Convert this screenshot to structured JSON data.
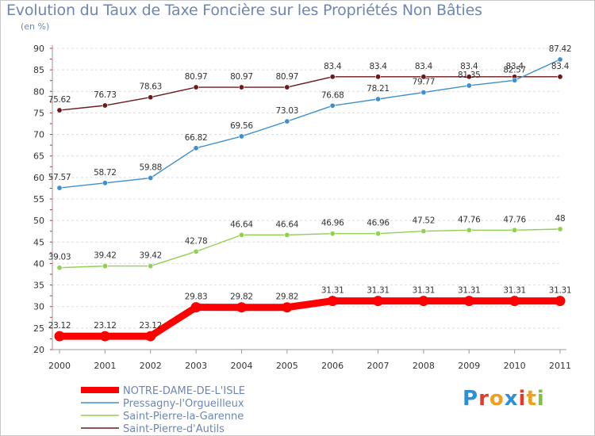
{
  "chart_data": {
    "type": "line",
    "title": "Evolution du Taux de Taxe Foncière sur les Propriétés Non Bâties",
    "unit_label": "(en %)",
    "xlabel": "",
    "ylabel": "",
    "x": [
      "2000",
      "2001",
      "2002",
      "2003",
      "2004",
      "2005",
      "2006",
      "2007",
      "2008",
      "2009",
      "2010",
      "2011"
    ],
    "ylim": [
      20,
      90
    ],
    "yticks": [
      20,
      25,
      30,
      35,
      40,
      45,
      50,
      55,
      60,
      65,
      70,
      75,
      80,
      85,
      90
    ],
    "grid": "horizontal",
    "legend_position": "bottom-left",
    "series": [
      {
        "name": "NOTRE-DAME-DE-L'ISLE",
        "color": "#ff0000",
        "values": [
          23.12,
          23.12,
          23.12,
          29.83,
          29.82,
          29.82,
          31.31,
          31.31,
          31.31,
          31.31,
          31.31,
          31.31
        ],
        "labels": [
          "23.12",
          "23.12",
          "23.12",
          "29.83",
          "29.82",
          "29.82",
          "31.31",
          "31.31",
          "31.31",
          "31.31",
          "31.31",
          "31.31"
        ]
      },
      {
        "name": "Pressagny-l'Orgueilleux",
        "color": "#3e8fd0",
        "values": [
          57.57,
          58.72,
          59.88,
          66.82,
          69.56,
          73.03,
          76.68,
          78.21,
          79.77,
          81.35,
          82.57,
          87.42
        ],
        "labels": [
          "57.57",
          "58.72",
          "59.88",
          "66.82",
          "69.56",
          "73.03",
          "76.68",
          "78.21",
          "79.77",
          "81.35",
          "82.57",
          "87.42"
        ]
      },
      {
        "name": "Saint-Pierre-la-Garenne",
        "color": "#8fd14f",
        "values": [
          39.03,
          39.42,
          39.42,
          42.78,
          46.64,
          46.64,
          46.96,
          46.96,
          47.52,
          47.76,
          47.76,
          48
        ],
        "labels": [
          "39.03",
          "39.42",
          "39.42",
          "42.78",
          "46.64",
          "46.64",
          "46.96",
          "46.96",
          "47.52",
          "47.76",
          "47.76",
          "48"
        ]
      },
      {
        "name": "Saint-Pierre-d'Autils",
        "color": "#6b1a1a",
        "values": [
          75.62,
          76.73,
          78.63,
          80.97,
          80.97,
          80.97,
          83.4,
          83.4,
          83.4,
          83.4,
          83.4,
          83.4
        ],
        "labels": [
          "75.62",
          "76.73",
          "78.63",
          "80.97",
          "80.97",
          "80.97",
          "83.4",
          "83.4",
          "83.4",
          "83.4",
          "83.4",
          "83.4"
        ]
      }
    ]
  },
  "logo": {
    "letters": [
      "P",
      "r",
      "o",
      "x",
      "i",
      "t",
      "i"
    ],
    "colors": [
      "#2d8fd6",
      "#e5392b",
      "#f0a020",
      "#2d8fd6",
      "#e5392b",
      "#f0a020",
      "#7cc242"
    ]
  }
}
